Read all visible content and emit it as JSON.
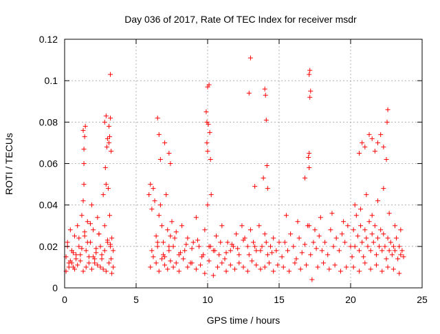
{
  "chart_data": {
    "type": "scatter",
    "title": "Day 036 of 2017, Rate Of TEC Index for receiver msdr",
    "xlabel": "GPS time / hours",
    "ylabel": "ROTI / TECUs",
    "xlim": [
      0,
      25
    ],
    "ylim": [
      0,
      0.12
    ],
    "x_ticks": [
      0,
      5,
      10,
      15,
      20,
      25
    ],
    "x_tick_labels": [
      "0",
      "5",
      "10",
      "15",
      "20",
      "25"
    ],
    "y_ticks": [
      0,
      0.02,
      0.04,
      0.06,
      0.08,
      0.1,
      0.12
    ],
    "y_tick_labels": [
      "0",
      "0.02",
      "0.04",
      "0.06",
      "0.08",
      "0.1",
      "0.12"
    ],
    "grid": true,
    "marker": "+",
    "color": "#ff0000",
    "series": [
      {
        "name": "ROTI",
        "x": [
          0.1,
          0.2,
          0.3,
          0.4,
          0.5,
          0.6,
          0.7,
          0.8,
          0.9,
          1.0,
          1.1,
          1.2,
          1.3,
          1.35,
          1.4,
          1.5,
          1.6,
          1.7,
          1.8,
          1.9,
          2.0,
          2.1,
          2.2,
          2.3,
          2.4,
          2.5,
          2.6,
          2.7,
          2.8,
          2.9,
          3.0,
          3.05,
          3.1,
          3.15,
          3.2,
          3.25,
          3.3,
          3.4,
          0.1,
          0.3,
          0.5,
          0.7,
          0.9,
          1.1,
          1.3,
          1.5,
          1.7,
          1.9,
          2.1,
          2.3,
          2.5,
          2.7,
          2.9,
          3.1,
          3.3,
          0.2,
          0.6,
          1.0,
          1.4,
          1.8,
          2.2,
          2.6,
          3.0,
          3.4,
          0.4,
          0.8,
          1.2,
          1.6,
          2.0,
          2.4,
          2.8,
          3.2,
          1.35,
          1.4,
          1.3,
          1.45,
          2.8,
          2.9,
          3.0,
          3.1,
          3.2,
          3.2,
          2.85,
          3.25,
          1.35,
          2.95,
          3.15,
          5.9,
          6.0,
          6.1,
          6.2,
          6.3,
          6.4,
          6.5,
          6.6,
          6.7,
          6.8,
          6.9,
          7.0,
          7.1,
          7.2,
          7.3,
          7.4,
          7.5,
          7.6,
          7.8,
          8.0,
          8.2,
          8.4,
          8.6,
          8.8,
          9.0,
          9.2,
          9.4,
          9.6,
          9.8,
          10.0,
          10.2,
          10.4,
          10.6,
          10.8,
          11.0,
          11.2,
          11.4,
          11.6,
          11.8,
          12.0,
          12.2,
          12.4,
          12.6,
          12.8,
          13.0,
          13.2,
          13.4,
          13.6,
          13.8,
          14.0,
          14.2,
          14.4,
          14.6,
          14.8,
          15.0,
          6.0,
          6.2,
          6.4,
          6.6,
          6.8,
          7.0,
          7.2,
          7.4,
          7.6,
          7.8,
          8.0,
          8.3,
          8.6,
          8.9,
          9.2,
          9.5,
          9.8,
          10.1,
          10.4,
          10.7,
          11.0,
          11.3,
          11.6,
          11.9,
          12.2,
          12.5,
          12.8,
          13.1,
          13.4,
          13.7,
          14.0,
          14.3,
          14.6,
          14.9,
          6.1,
          6.5,
          6.9,
          7.3,
          7.7,
          8.1,
          8.5,
          8.9,
          9.3,
          9.7,
          10.1,
          10.5,
          10.9,
          11.3,
          11.7,
          12.1,
          12.5,
          12.9,
          13.3,
          13.7,
          14.1,
          14.5,
          6.5,
          6.6,
          6.7,
          7.0,
          7.3,
          7.4,
          9.9,
          9.95,
          10.0,
          10.05,
          10.1,
          10.2,
          10.25,
          12.9,
          13.0,
          13.3,
          13.9,
          14.0,
          14.05,
          14.1,
          14.15,
          14.2,
          9.95,
          10.0,
          10.15,
          15.2,
          15.4,
          15.6,
          15.8,
          16.0,
          16.2,
          16.4,
          16.6,
          16.8,
          17.0,
          17.2,
          17.4,
          17.6,
          17.8,
          18.0,
          18.2,
          18.4,
          18.6,
          18.8,
          19.0,
          19.2,
          19.4,
          19.6,
          19.8,
          20.0,
          15.3,
          15.7,
          16.1,
          16.5,
          16.9,
          17.3,
          17.7,
          18.1,
          18.5,
          18.9,
          19.3,
          19.7,
          15.5,
          16.3,
          17.1,
          17.5,
          17.9,
          18.7,
          19.5,
          16.8,
          17.05,
          17.1,
          17.1,
          17.15,
          17.2,
          17.1,
          17.15,
          20.1,
          20.2,
          20.3,
          20.4,
          20.5,
          20.6,
          20.7,
          20.8,
          20.9,
          21.0,
          21.1,
          21.2,
          21.3,
          21.4,
          21.5,
          21.6,
          21.7,
          21.8,
          21.9,
          22.0,
          22.1,
          22.2,
          22.3,
          22.4,
          22.5,
          22.6,
          22.7,
          22.8,
          22.9,
          23.0,
          23.1,
          23.2,
          23.3,
          23.4,
          23.5,
          23.6,
          23.7,
          20.2,
          20.6,
          21.0,
          21.4,
          21.8,
          22.2,
          22.6,
          23.0,
          23.4,
          20.3,
          20.7,
          21.1,
          21.5,
          21.9,
          22.3,
          22.7,
          23.1,
          23.5,
          20.6,
          20.8,
          21.0,
          21.3,
          21.5,
          21.7,
          21.9,
          22.1,
          22.3,
          22.5,
          22.55,
          22.6
        ],
        "y": [
          0.015,
          0.022,
          0.012,
          0.028,
          0.018,
          0.01,
          0.025,
          0.014,
          0.03,
          0.02,
          0.016,
          0.035,
          0.042,
          0.06,
          0.025,
          0.018,
          0.032,
          0.015,
          0.022,
          0.04,
          0.028,
          0.012,
          0.017,
          0.034,
          0.026,
          0.02,
          0.014,
          0.045,
          0.03,
          0.05,
          0.022,
          0.048,
          0.07,
          0.035,
          0.02,
          0.014,
          0.024,
          0.01,
          0.008,
          0.01,
          0.012,
          0.009,
          0.011,
          0.013,
          0.008,
          0.01,
          0.012,
          0.009,
          0.014,
          0.011,
          0.01,
          0.009,
          0.008,
          0.012,
          0.007,
          0.02,
          0.017,
          0.024,
          0.027,
          0.031,
          0.019,
          0.016,
          0.023,
          0.018,
          0.013,
          0.016,
          0.019,
          0.022,
          0.015,
          0.026,
          0.018,
          0.021,
          0.067,
          0.073,
          0.076,
          0.078,
          0.08,
          0.083,
          0.072,
          0.078,
          0.082,
          0.103,
          0.058,
          0.066,
          0.05,
          0.068,
          0.073,
          0.045,
          0.05,
          0.038,
          0.048,
          0.042,
          0.025,
          0.02,
          0.035,
          0.04,
          0.03,
          0.022,
          0.015,
          0.045,
          0.028,
          0.018,
          0.025,
          0.032,
          0.02,
          0.027,
          0.016,
          0.03,
          0.018,
          0.024,
          0.012,
          0.022,
          0.034,
          0.02,
          0.015,
          0.028,
          0.04,
          0.02,
          0.018,
          0.025,
          0.016,
          0.03,
          0.014,
          0.022,
          0.018,
          0.02,
          0.026,
          0.016,
          0.03,
          0.024,
          0.02,
          0.028,
          0.022,
          0.018,
          0.03,
          0.02,
          0.026,
          0.016,
          0.02,
          0.024,
          0.018,
          0.022,
          0.01,
          0.015,
          0.012,
          0.008,
          0.014,
          0.011,
          0.009,
          0.013,
          0.01,
          0.012,
          0.008,
          0.014,
          0.01,
          0.012,
          0.009,
          0.011,
          0.007,
          0.013,
          0.006,
          0.01,
          0.012,
          0.008,
          0.011,
          0.009,
          0.012,
          0.01,
          0.008,
          0.013,
          0.011,
          0.009,
          0.01,
          0.012,
          0.008,
          0.011,
          0.018,
          0.022,
          0.016,
          0.02,
          0.024,
          0.017,
          0.021,
          0.019,
          0.023,
          0.016,
          0.02,
          0.018,
          0.022,
          0.017,
          0.021,
          0.019,
          0.023,
          0.016,
          0.02,
          0.018,
          0.022,
          0.017,
          0.082,
          0.074,
          0.062,
          0.07,
          0.065,
          0.06,
          0.085,
          0.08,
          0.097,
          0.079,
          0.098,
          0.062,
          0.045,
          0.094,
          0.111,
          0.049,
          0.053,
          0.096,
          0.093,
          0.081,
          0.059,
          0.048,
          0.07,
          0.066,
          0.075,
          0.015,
          0.022,
          0.018,
          0.026,
          0.02,
          0.014,
          0.024,
          0.017,
          0.021,
          0.03,
          0.016,
          0.022,
          0.019,
          0.025,
          0.018,
          0.022,
          0.016,
          0.028,
          0.02,
          0.024,
          0.018,
          0.026,
          0.022,
          0.03,
          0.02,
          0.01,
          0.008,
          0.012,
          0.009,
          0.011,
          0.004,
          0.01,
          0.012,
          0.009,
          0.011,
          0.008,
          0.01,
          0.035,
          0.032,
          0.03,
          0.028,
          0.034,
          0.036,
          0.032,
          0.053,
          0.063,
          0.058,
          0.065,
          0.092,
          0.095,
          0.103,
          0.105,
          0.015,
          0.028,
          0.02,
          0.035,
          0.025,
          0.018,
          0.03,
          0.022,
          0.015,
          0.028,
          0.024,
          0.02,
          0.032,
          0.018,
          0.026,
          0.022,
          0.03,
          0.016,
          0.024,
          0.02,
          0.028,
          0.018,
          0.026,
          0.02,
          0.014,
          0.024,
          0.018,
          0.022,
          0.016,
          0.02,
          0.018,
          0.024,
          0.014,
          0.02,
          0.016,
          0.018,
          0.015,
          0.01,
          0.008,
          0.012,
          0.009,
          0.011,
          0.008,
          0.01,
          0.009,
          0.007,
          0.04,
          0.038,
          0.045,
          0.035,
          0.042,
          0.048,
          0.036,
          0.03,
          0.028,
          0.065,
          0.07,
          0.068,
          0.074,
          0.072,
          0.066,
          0.07,
          0.074,
          0.068,
          0.062,
          0.08,
          0.086
        ]
      }
    ]
  }
}
